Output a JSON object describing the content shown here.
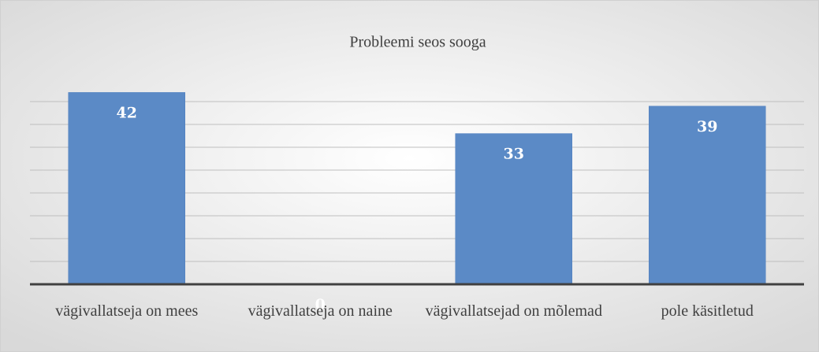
{
  "chart_data": {
    "type": "bar",
    "title": "Probleemi seos sooga",
    "categories": [
      "vägivallatseja on mees",
      "vägivallatseja on naine",
      "vägivallatsejad on mõlemad",
      "pole käsitletud"
    ],
    "values": [
      42,
      0,
      33,
      39
    ],
    "color": "#5b8ac6",
    "ylim": [
      0,
      45
    ],
    "yticks": [
      0,
      5,
      10,
      15,
      20,
      25,
      30,
      35,
      40
    ],
    "grid": true
  }
}
